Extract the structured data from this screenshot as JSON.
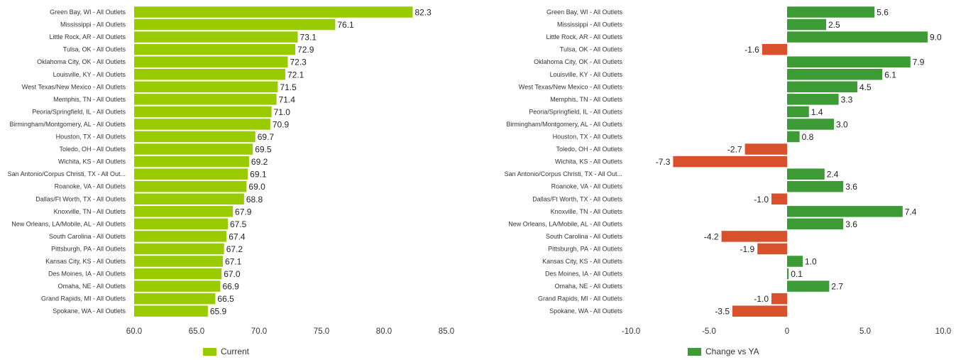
{
  "chart_data": [
    {
      "type": "bar",
      "orientation": "horizontal",
      "categories": [
        "Green Bay, WI - All Outlets",
        "Mississippi - All Outlets",
        "Little Rock, AR - All Outlets",
        "Tulsa, OK - All Outlets",
        "Oklahoma City, OK - All Outlets",
        "Louisville, KY - All Outlets",
        "West Texas/New Mexico - All Outlets",
        "Memphis, TN - All Outlets",
        "Peoria/Springfield, IL - All Outlets",
        "Birmingham/Montgomery, AL - All Outlets",
        "Houston, TX - All Outlets",
        "Toledo, OH - All Outlets",
        "Wichita, KS - All Outlets",
        "San Antonio/Corpus Christi, TX - All Out...",
        "Roanoke, VA - All Outlets",
        "Dallas/Ft Worth, TX - All Outlets",
        "Knoxville, TN - All Outlets",
        "New Orleans, LA/Mobile, AL - All Outlets",
        "South Carolina - All Outlets",
        "Pittsburgh, PA - All Outlets",
        "Kansas City, KS - All Outlets",
        "Des Moines, IA - All Outlets",
        "Omaha, NE - All Outlets",
        "Grand Rapids, MI - All Outlets",
        "Spokane, WA - All Outlets"
      ],
      "series": [
        {
          "name": "Current",
          "color": "#99cc00",
          "values": [
            82.3,
            76.1,
            73.1,
            72.9,
            72.3,
            72.1,
            71.5,
            71.4,
            71.0,
            70.9,
            69.7,
            69.5,
            69.2,
            69.1,
            69.0,
            68.8,
            67.9,
            67.5,
            67.4,
            67.2,
            67.1,
            67.0,
            66.9,
            66.5,
            65.9
          ],
          "labels": [
            "82.3",
            "76.1",
            "73.1",
            "72.9",
            "72.3",
            "72.1",
            "71.5",
            "71.4",
            "71.0",
            "70.9",
            "69.7",
            "69.5",
            "69.2",
            "69.1",
            "69.0",
            "68.8",
            "67.9",
            "67.5",
            "67.4",
            "67.2",
            "67.1",
            "67.0",
            "66.9",
            "66.5",
            "65.9"
          ]
        }
      ],
      "xlim": [
        60.0,
        85.0
      ],
      "xticks": [
        "60.0",
        "65.0",
        "70.0",
        "75.0",
        "80.0",
        "85.0"
      ],
      "grid": false,
      "legend": "bottom"
    },
    {
      "type": "bar",
      "orientation": "horizontal",
      "categories": [
        "Green Bay, WI - All Outlets",
        "Mississippi - All Outlets",
        "Little Rock, AR - All Outlets",
        "Tulsa, OK - All Outlets",
        "Oklahoma City, OK - All Outlets",
        "Louisville, KY - All Outlets",
        "West Texas/New Mexico - All Outlets",
        "Memphis, TN - All Outlets",
        "Peoria/Springfield, IL - All Outlets",
        "Birmingham/Montgomery, AL - All Outlets",
        "Houston, TX - All Outlets",
        "Toledo, OH - All Outlets",
        "Wichita, KS - All Outlets",
        "San Antonio/Corpus Christi, TX - All Out...",
        "Roanoke, VA - All Outlets",
        "Dallas/Ft Worth, TX - All Outlets",
        "Knoxville, TN - All Outlets",
        "New Orleans, LA/Mobile, AL - All Outlets",
        "South Carolina - All Outlets",
        "Pittsburgh, PA - All Outlets",
        "Kansas City, KS - All Outlets",
        "Des Moines, IA - All Outlets",
        "Omaha, NE - All Outlets",
        "Grand Rapids, MI - All Outlets",
        "Spokane, WA - All Outlets"
      ],
      "series": [
        {
          "name": "Change vs YA",
          "color": "#3d9b35",
          "negative_color": "#d9512c",
          "values": [
            5.6,
            2.5,
            9.0,
            -1.6,
            7.9,
            6.1,
            4.5,
            3.3,
            1.4,
            3.0,
            0.8,
            -2.7,
            -7.3,
            2.4,
            3.6,
            -1.0,
            7.4,
            3.6,
            -4.2,
            -1.9,
            1.0,
            0.1,
            2.7,
            -1.0,
            -3.5
          ],
          "labels": [
            "5.6",
            "2.5",
            "9.0",
            "-1.6",
            "7.9",
            "6.1",
            "4.5",
            "3.3",
            "1.4",
            "3.0",
            "0.8",
            "-2.7",
            "-7.3",
            "2.4",
            "3.6",
            "-1.0",
            "7.4",
            "3.6",
            "-4.2",
            "-1.9",
            "1.0",
            "0.1",
            "2.7",
            "-1.0",
            "-3.5"
          ]
        }
      ],
      "xlim": [
        -10.0,
        10.0
      ],
      "xticks": [
        "-10.0",
        "-5.0",
        "0",
        "5.0",
        "10.0"
      ],
      "grid": false,
      "legend": "bottom"
    }
  ]
}
